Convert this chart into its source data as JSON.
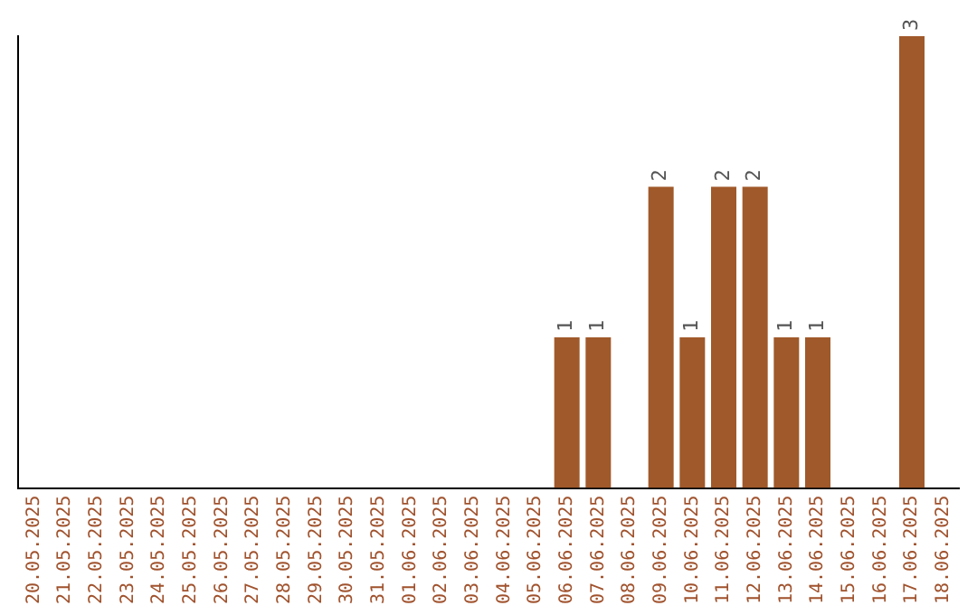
{
  "chart_data": {
    "type": "bar",
    "categories": [
      "20.05.2025",
      "21.05.2025",
      "22.05.2025",
      "23.05.2025",
      "24.05.2025",
      "25.05.2025",
      "26.05.2025",
      "27.05.2025",
      "28.05.2025",
      "29.05.2025",
      "30.05.2025",
      "31.05.2025",
      "01.06.2025",
      "02.06.2025",
      "03.06.2025",
      "04.06.2025",
      "05.06.2025",
      "06.06.2025",
      "07.06.2025",
      "08.06.2025",
      "09.06.2025",
      "10.06.2025",
      "11.06.2025",
      "12.06.2025",
      "13.06.2025",
      "14.06.2025",
      "15.06.2025",
      "16.06.2025",
      "17.06.2025",
      "18.06.2025"
    ],
    "values": [
      null,
      null,
      null,
      null,
      null,
      null,
      null,
      null,
      null,
      null,
      null,
      null,
      null,
      null,
      null,
      null,
      null,
      1,
      1,
      null,
      2,
      1,
      2,
      2,
      1,
      1,
      null,
      null,
      3,
      null
    ],
    "data_labels": true,
    "color": "#a0592a",
    "ylim": [
      0,
      3
    ],
    "tick_labels": "x",
    "grid": false,
    "legend": false
  }
}
